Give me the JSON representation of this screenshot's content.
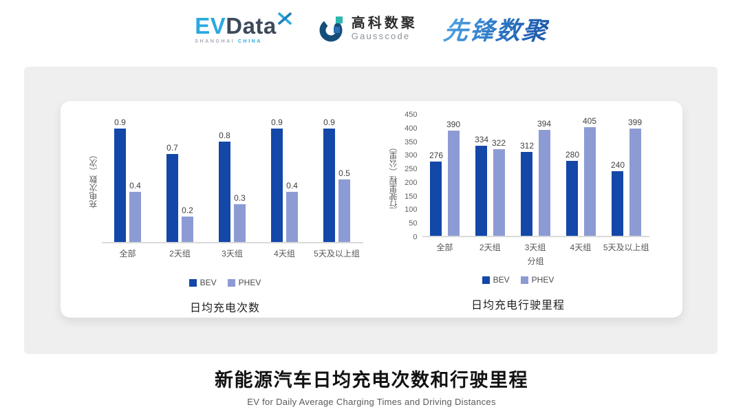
{
  "header": {
    "evdata": {
      "ev": "EV",
      "data": "Data",
      "sub_left": "SHANGHAI",
      "sub_right": "CHINA"
    },
    "gausscode": {
      "cn": "高科数聚",
      "en": "Gausscode"
    },
    "xianfeng": "先锋数聚"
  },
  "colors": {
    "bev": "#1347A8",
    "phev": "#8D9BD4",
    "panel_bg": "#EFEFEF",
    "card_bg": "#FFFFFF",
    "logo_blue": "#29A9E0",
    "logo_dark": "#3D4A5A"
  },
  "chart_data": [
    {
      "type": "bar",
      "title": "日均充电次数",
      "ylabel": "充电次数（次）",
      "xlabel": "",
      "categories": [
        "全部",
        "2天组",
        "3天组",
        "4天组",
        "5天及以上组"
      ],
      "series": [
        {
          "name": "BEV",
          "color": "#1347A8",
          "values": [
            0.9,
            0.7,
            0.8,
            0.9,
            0.9
          ]
        },
        {
          "name": "PHEV",
          "color": "#8D9BD4",
          "values": [
            0.4,
            0.2,
            0.3,
            0.4,
            0.5
          ]
        }
      ],
      "ylim": [
        0,
        1.0
      ],
      "yticks": [],
      "grid": false,
      "legend_position": "bottom"
    },
    {
      "type": "bar",
      "title": "日均充电行驶里程",
      "ylabel": "行驶里程（公里）",
      "xlabel": "分组",
      "categories": [
        "全部",
        "2天组",
        "3天组",
        "4天组",
        "5天及以上组"
      ],
      "series": [
        {
          "name": "BEV",
          "color": "#1347A8",
          "values": [
            276,
            334,
            312,
            280,
            240
          ]
        },
        {
          "name": "PHEV",
          "color": "#8D9BD4",
          "values": [
            390,
            322,
            394,
            405,
            399
          ]
        }
      ],
      "ylim": [
        0,
        450
      ],
      "yticks": [
        0,
        50,
        100,
        150,
        200,
        250,
        300,
        350,
        400,
        450
      ],
      "grid": false,
      "legend_position": "bottom"
    }
  ],
  "footer": {
    "title": "新能源汽车日均充电次数和行驶里程",
    "subtitle": "EV for Daily Average Charging Times and Driving Distances"
  }
}
